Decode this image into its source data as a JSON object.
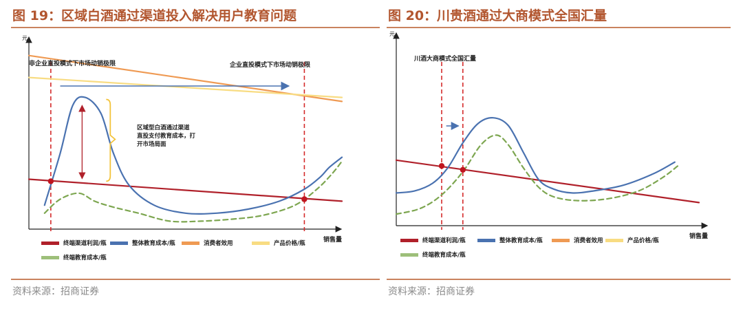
{
  "charts": [
    {
      "title": "图 19：区域白酒通过渠道投入解决用户教育问题",
      "source": "资料来源：招商证券",
      "chart_data": {
        "type": "line",
        "ylabel": "元",
        "xlabel": "销售量",
        "x_range": [
          0,
          100
        ],
        "y_range": [
          0,
          100
        ],
        "series": [
          {
            "name": "终端渠道利润/瓶",
            "color": "#b0202a",
            "style": "solid",
            "x": [
              0,
              100
            ],
            "y": [
              25,
              14
            ]
          },
          {
            "name": "整体教育成本/瓶",
            "color": "#4a72b0",
            "style": "solid",
            "x": [
              5,
              10,
              14,
              18,
              23,
              27,
              32,
              40,
              50,
              60,
              70,
              80,
              88,
              93,
              96,
              100
            ],
            "y": [
              12,
              38,
              62,
              66,
              58,
              38,
              22,
              12,
              8,
              8,
              10,
              14,
              20,
              26,
              31,
              36
            ]
          },
          {
            "name": "消费者效用",
            "color": "#ef9a53",
            "style": "solid",
            "x": [
              0,
              100
            ],
            "y": [
              87,
              64
            ]
          },
          {
            "name": "产品价格/瓶",
            "color": "#f8dc82",
            "style": "solid",
            "x": [
              0,
              100
            ],
            "y": [
              76,
              66
            ]
          },
          {
            "name": "终端教育成本/瓶",
            "color": "#7da650",
            "style": "dashed",
            "x": [
              5,
              10,
              16,
              21,
              27,
              35,
              45,
              55,
              65,
              75,
              85,
              92,
              97,
              100
            ],
            "y": [
              8,
              15,
              18,
              14,
              11,
              8,
              4,
              4,
              5,
              7,
              12,
              20,
              28,
              34
            ]
          }
        ],
        "vlines": [
          {
            "x": 7,
            "label": "非企业直投模式下市场动销极限"
          },
          {
            "x": 88,
            "label": "企业直投模式下市场动销极限"
          }
        ],
        "points": [
          {
            "x": 7,
            "y": 24
          },
          {
            "x": 88,
            "y": 15
          }
        ],
        "annotation": "区域型白酒通过渠道直投支付教育成本，打开市场局面",
        "legend": [
          "终端渠道利润/瓶",
          "整体教育成本/瓶",
          "消费者效用",
          "产品价格/瓶",
          "终端教育成本/瓶"
        ]
      }
    },
    {
      "title": "图 20：川贵酒通过大商模式全国汇量",
      "source": "资料来源：招商证券",
      "chart_data": {
        "type": "line",
        "ylabel": "元",
        "xlabel": "销售量",
        "x_range": [
          0,
          100
        ],
        "y_range": [
          0,
          100
        ],
        "series": [
          {
            "name": "终端渠道利润/瓶",
            "color": "#b0202a",
            "style": "solid",
            "x": [
              0,
              100
            ],
            "y": [
              34,
              12
            ]
          },
          {
            "name": "整体教育成本/瓶",
            "color": "#4a72b0",
            "style": "solid",
            "x": [
              0,
              6,
              12,
              17,
              22,
              27,
              32,
              37,
              42,
              47,
              52,
              58,
              65,
              75,
              85,
              92
            ],
            "y": [
              17,
              18,
              22,
              30,
              43,
              53,
              56,
              52,
              38,
              24,
              19,
              17,
              18,
              21,
              27,
              33
            ]
          },
          {
            "name": "终端教育成本/瓶",
            "color": "#7da650",
            "style": "dashed",
            "x": [
              0,
              8,
              15,
              22,
              28,
              33,
              37,
              42,
              47,
              52,
              60,
              70,
              80,
              88,
              93
            ],
            "y": [
              6,
              9,
              16,
              28,
              42,
              47,
              42,
              30,
              20,
              15,
              13,
              14,
              18,
              25,
              31
            ]
          }
        ],
        "vlines": [
          {
            "x": 15,
            "label": "川酒大商模式全国汇量"
          },
          {
            "x": 22,
            "label": ""
          }
        ],
        "points": [
          {
            "x": 15,
            "y": 31
          },
          {
            "x": 22,
            "y": 29
          }
        ],
        "legend": [
          "终端渠道利润/瓶",
          "整体教育成本/瓶",
          "消费者效用",
          "产品价格/瓶",
          "终端教育成本/瓶"
        ],
        "legend_colors": [
          "#b0202a",
          "#4a72b0",
          "#ef9a53",
          "#f8dc82",
          "#7da650"
        ]
      }
    }
  ]
}
